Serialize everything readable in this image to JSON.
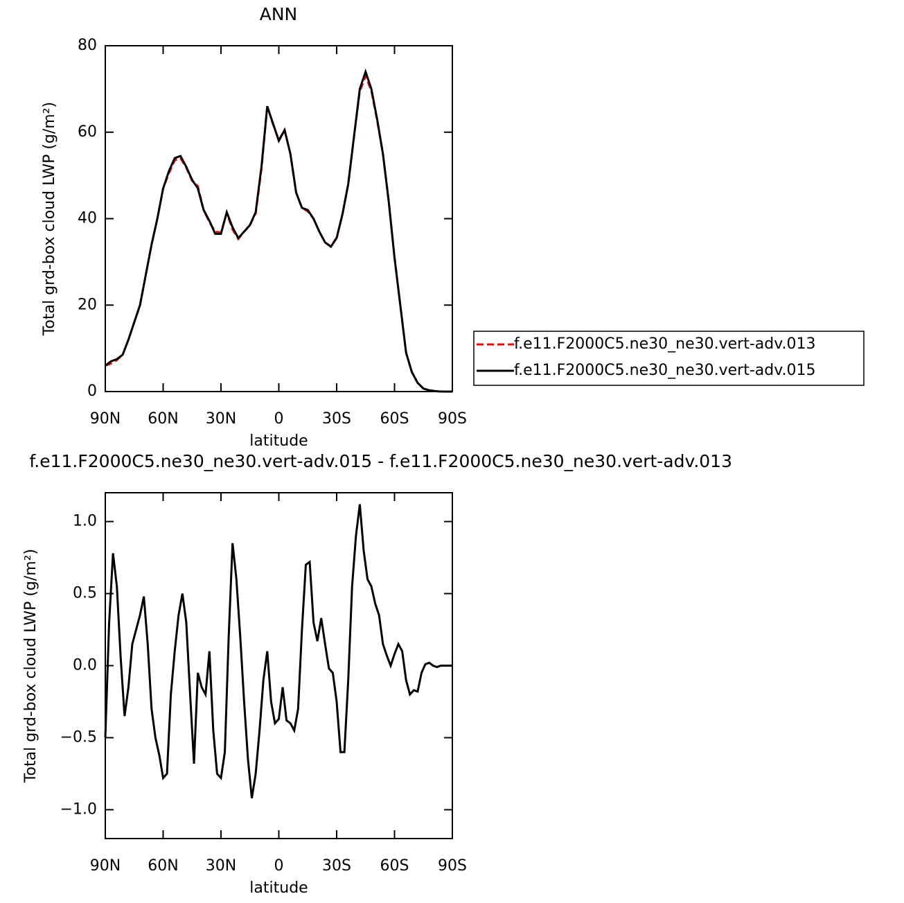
{
  "chart_data": [
    {
      "type": "line",
      "title": "ANN",
      "xlabel": "latitude",
      "ylabel": "Total grd-box cloud LWP (g/m²)",
      "xlim": [
        90,
        -90
      ],
      "ylim": [
        0,
        80
      ],
      "xticks": [
        {
          "value": 90,
          "label": "90N"
        },
        {
          "value": 60,
          "label": "60N"
        },
        {
          "value": 30,
          "label": "30N"
        },
        0,
        {
          "value": -30,
          "label": "30S"
        },
        {
          "value": -60,
          "label": "60S"
        },
        {
          "value": -90,
          "label": "90S"
        }
      ],
      "yticks": [
        0,
        20,
        40,
        60,
        80
      ],
      "grid": false,
      "legend": "right",
      "x": [
        90,
        87,
        84,
        81,
        78,
        75,
        72,
        69,
        66,
        63,
        60,
        57,
        54,
        51,
        48,
        45,
        42,
        39,
        36,
        33,
        30,
        27,
        24,
        21,
        18,
        15,
        12,
        9,
        6,
        3,
        0,
        -3,
        -6,
        -9,
        -12,
        -15,
        -18,
        -21,
        -24,
        -27,
        -30,
        -33,
        -36,
        -39,
        -42,
        -45,
        -48,
        -51,
        -54,
        -57,
        -60,
        -63,
        -66,
        -69,
        -72,
        -75,
        -78,
        -81,
        -84,
        -87,
        -90
      ],
      "series": [
        {
          "name": "f.e11.F2000C5.ne30_ne30.vert-adv.013",
          "color": "#ff0000",
          "line_style": "dashed",
          "values": [
            6,
            6.5,
            7.3,
            8.5,
            12,
            16,
            20,
            27,
            34,
            40,
            47,
            50.5,
            53.5,
            54,
            51.8,
            48.8,
            47.5,
            42,
            39.2,
            37,
            36.8,
            41.3,
            37.5,
            35.3,
            37,
            38.5,
            41.2,
            51.5,
            66,
            61.8,
            58.2,
            60.5,
            55,
            46,
            42.5,
            41.7,
            40,
            37,
            34.5,
            33.6,
            35.6,
            41,
            48,
            59,
            69.5,
            73,
            69.6,
            62.7,
            55,
            44,
            31,
            20,
            9,
            4.5,
            2,
            0.7,
            0.3,
            0.1,
            0,
            0,
            0
          ]
        },
        {
          "name": "f.e11.F2000C5.ne30_ne30.vert-adv.015",
          "color": "#000000",
          "line_style": "solid",
          "values": [
            6,
            7,
            7.5,
            8.5,
            12,
            16,
            20,
            27,
            34,
            40,
            47,
            51,
            54,
            54.5,
            52,
            49,
            47,
            42,
            39.5,
            36.5,
            36.5,
            41.5,
            38,
            35.5,
            37,
            38.5,
            41.5,
            52,
            66,
            62,
            58,
            60.5,
            55,
            46,
            42.5,
            42,
            40,
            37,
            34.5,
            33.5,
            35.5,
            41,
            48,
            59,
            70,
            74,
            70,
            63,
            55,
            44,
            31,
            20,
            9,
            4.5,
            2,
            0.7,
            0.3,
            0.1,
            0,
            0,
            0
          ]
        }
      ]
    },
    {
      "type": "line",
      "title": "f.e11.F2000C5.ne30_ne30.vert-adv.015 - f.e11.F2000C5.ne30_ne30.vert-adv.013",
      "xlabel": "latitude",
      "ylabel": "Total grd-box cloud LWP (g/m²)",
      "xlim": [
        90,
        -90
      ],
      "ylim": [
        -1.2,
        1.2
      ],
      "xticks": [
        {
          "value": 90,
          "label": "90N"
        },
        {
          "value": 60,
          "label": "60N"
        },
        {
          "value": 30,
          "label": "30N"
        },
        0,
        {
          "value": -30,
          "label": "30S"
        },
        {
          "value": -60,
          "label": "60S"
        },
        {
          "value": -90,
          "label": "90S"
        }
      ],
      "yticks": [
        {
          "value": -1,
          "label": "−1.0"
        },
        {
          "value": -0.5,
          "label": "−0.5"
        },
        {
          "value": 0,
          "label": "0.0"
        },
        0.5,
        {
          "value": 1,
          "label": "1.0"
        }
      ],
      "grid": false,
      "color": "#000000",
      "x": [
        90,
        88,
        86,
        84,
        82,
        80,
        78,
        76,
        74,
        72,
        70,
        68,
        66,
        64,
        62,
        60,
        58,
        56,
        54,
        52,
        50,
        48,
        46,
        44,
        42,
        40,
        38,
        36,
        34,
        32,
        30,
        28,
        26,
        24,
        22,
        20,
        18,
        16,
        14,
        12,
        10,
        8,
        6,
        4,
        2,
        0,
        -2,
        -4,
        -6,
        -8,
        -10,
        -12,
        -14,
        -16,
        -18,
        -20,
        -22,
        -24,
        -26,
        -28,
        -30,
        -32,
        -34,
        -36,
        -38,
        -40,
        -42,
        -44,
        -46,
        -48,
        -50,
        -52,
        -54,
        -56,
        -58,
        -60,
        -62,
        -64,
        -66,
        -68,
        -70,
        -72,
        -74,
        -76,
        -78,
        -80,
        -82,
        -84,
        -86,
        -88,
        -90
      ],
      "values": [
        -0.5,
        0.3,
        0.78,
        0.55,
        0.05,
        -0.35,
        -0.15,
        0.15,
        0.25,
        0.35,
        0.48,
        0.15,
        -0.3,
        -0.5,
        -0.62,
        -0.78,
        -0.75,
        -0.2,
        0.1,
        0.35,
        0.5,
        0.3,
        -0.2,
        -0.68,
        -0.05,
        -0.15,
        -0.2,
        0.1,
        -0.45,
        -0.75,
        -0.78,
        -0.6,
        0.2,
        0.85,
        0.6,
        0.2,
        -0.25,
        -0.65,
        -0.92,
        -0.75,
        -0.45,
        -0.1,
        0.1,
        -0.25,
        -0.4,
        -0.37,
        -0.15,
        -0.38,
        -0.4,
        -0.45,
        -0.3,
        0.25,
        0.7,
        0.72,
        0.3,
        0.17,
        0.33,
        0.15,
        -0.02,
        -0.05,
        -0.25,
        -0.6,
        -0.6,
        -0.1,
        0.55,
        0.9,
        1.12,
        0.8,
        0.6,
        0.55,
        0.43,
        0.35,
        0.15,
        0.07,
        0,
        0.08,
        0.15,
        0.1,
        -0.1,
        -0.2,
        -0.17,
        -0.18,
        -0.05,
        0.01,
        0.02,
        0,
        -0.01,
        0,
        0,
        0,
        0
      ]
    }
  ]
}
